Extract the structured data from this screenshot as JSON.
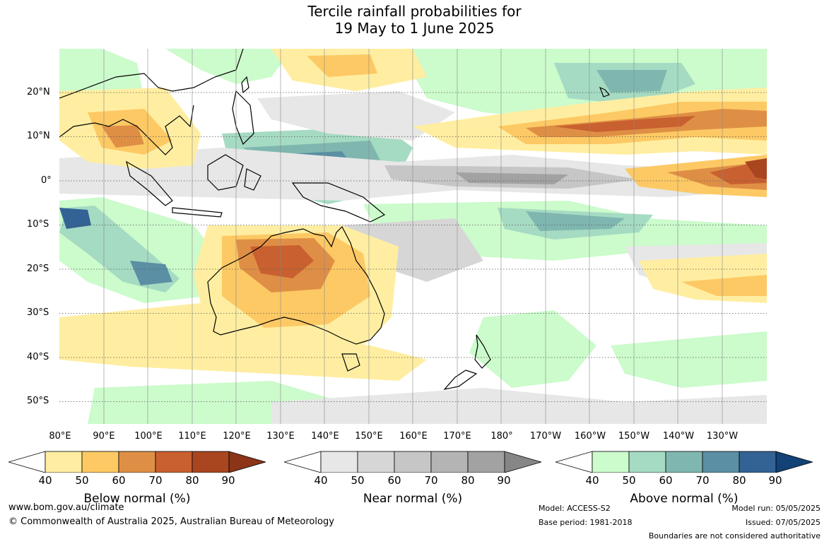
{
  "title": {
    "line1": "Tercile rainfall probabilities for",
    "line2": "19 May to 1 June 2025"
  },
  "lat_labels": [
    "20°N",
    "10°N",
    "0°",
    "10°S",
    "20°S",
    "30°S",
    "40°S",
    "50°S"
  ],
  "lon_labels": [
    "80°E",
    "90°E",
    "100°E",
    "110°E",
    "120°E",
    "130°E",
    "140°E",
    "150°E",
    "160°E",
    "170°E",
    "180°",
    "170°W",
    "160°W",
    "150°W",
    "140°W",
    "130°W"
  ],
  "colorbars": [
    {
      "title": "Below normal (%)",
      "ticks": [
        "40",
        "50",
        "60",
        "70",
        "80",
        "90"
      ],
      "colors": [
        "#ffffff",
        "#ffeea1",
        "#fdc964",
        "#df8f45",
        "#c96030",
        "#a9461f",
        "#8b3417"
      ]
    },
    {
      "title": "Near normal (%)",
      "ticks": [
        "40",
        "50",
        "60",
        "70",
        "80",
        "90"
      ],
      "colors": [
        "#ffffff",
        "#e7e7e7",
        "#d6d6d6",
        "#c6c6c6",
        "#b4b4b4",
        "#a2a2a2",
        "#868686"
      ]
    },
    {
      "title": "Above normal (%)",
      "ticks": [
        "40",
        "50",
        "60",
        "70",
        "80",
        "90"
      ],
      "colors": [
        "#ffffff",
        "#ccfbcc",
        "#a5dbc2",
        "#7fb7b0",
        "#5a8fa4",
        "#336395",
        "#124276"
      ]
    }
  ],
  "footer": {
    "website": "www.bom.gov.au/climate",
    "copyright": "© Commonwealth of Australia 2025, Australian Bureau of Meteorology",
    "model": "Model: ACCESS-S2",
    "base_period": "Base period: 1981-2018",
    "model_run": "Model run: 05/05/2025",
    "issued": "Issued: 07/05/2025",
    "boundaries": "Boundaries are not considered authoritative"
  }
}
